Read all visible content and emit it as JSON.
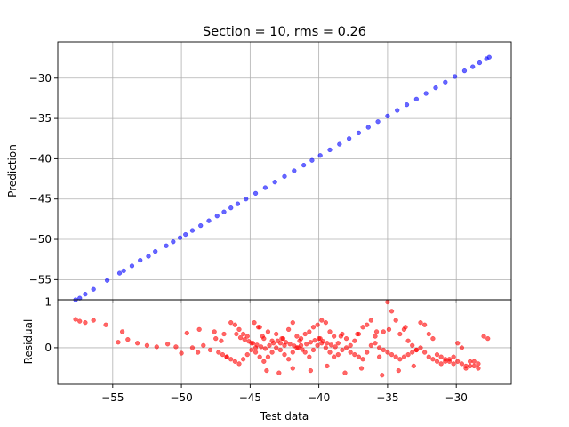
{
  "chart_data": [
    {
      "type": "scatter",
      "title": "Section = 10, rms = 0.26",
      "xlabel": "",
      "ylabel": "Prediction",
      "xlim": [
        -59,
        -26
      ],
      "ylim": [
        -57.5,
        -25.5
      ],
      "xticks": [
        -55,
        -50,
        -45,
        -40,
        -35,
        -30
      ],
      "yticks": [
        -55,
        -50,
        -45,
        -40,
        -35,
        -30
      ],
      "ytick_labels": [
        "−55",
        "−50",
        "−45",
        "−40",
        "−35",
        "−30"
      ],
      "grid": true,
      "series": [
        {
          "color": "#0000ff",
          "x": [
            -57.7,
            -57.4,
            -57.0,
            -56.4,
            -55.4,
            -54.5,
            -54.2,
            -53.6,
            -53.0,
            -52.4,
            -51.9,
            -51.1,
            -50.6,
            -50.1,
            -49.7,
            -49.2,
            -48.6,
            -48.0,
            -47.4,
            -46.9,
            -46.4,
            -45.9,
            -45.3,
            -44.6,
            -43.9,
            -43.2,
            -42.5,
            -41.8,
            -41.1,
            -40.5,
            -39.9,
            -39.2,
            -38.5,
            -37.8,
            -37.1,
            -36.4,
            -35.7,
            -35.0,
            -34.3,
            -33.6,
            -32.9,
            -32.2,
            -31.5,
            -30.8,
            -30.1,
            -29.4,
            -28.8,
            -28.3,
            -27.8,
            -27.6
          ],
          "y": [
            -57.5,
            -57.3,
            -56.8,
            -56.2,
            -55.1,
            -54.2,
            -53.9,
            -53.3,
            -52.6,
            -52.1,
            -51.5,
            -50.8,
            -50.3,
            -49.8,
            -49.4,
            -48.9,
            -48.3,
            -47.7,
            -47.1,
            -46.6,
            -46.1,
            -45.6,
            -45.0,
            -44.3,
            -43.6,
            -42.9,
            -42.2,
            -41.5,
            -40.8,
            -40.2,
            -39.6,
            -38.9,
            -38.2,
            -37.5,
            -36.8,
            -36.1,
            -35.4,
            -34.7,
            -34.0,
            -33.3,
            -32.6,
            -31.9,
            -31.2,
            -30.5,
            -29.8,
            -29.1,
            -28.6,
            -28.1,
            -27.6,
            -27.4
          ]
        }
      ]
    },
    {
      "type": "scatter",
      "title": "",
      "xlabel": "Test data",
      "ylabel": "Residual",
      "xlim": [
        -59,
        -26
      ],
      "ylim": [
        -0.8,
        1.05
      ],
      "xticks": [
        -55,
        -50,
        -45,
        -40,
        -35,
        -30
      ],
      "xtick_labels": [
        "−55",
        "−50",
        "−45",
        "−40",
        "−35",
        "−30"
      ],
      "yticks": [
        0,
        1
      ],
      "ytick_labels": [
        "0",
        "1"
      ],
      "grid": true,
      "series": [
        {
          "color": "#ff0000",
          "x": [
            -57.7,
            -57.4,
            -57.0,
            -56.4,
            -55.5,
            -54.6,
            -54.3,
            -53.9,
            -53.2,
            -52.5,
            -51.8,
            -51.0,
            -50.4,
            -50.0,
            -49.6,
            -49.2,
            -48.8,
            -48.4,
            -47.9,
            -47.5,
            -47.1,
            -46.7,
            -46.4,
            -46.1,
            -45.8,
            -45.5,
            -45.2,
            -44.9,
            -44.6,
            -44.3,
            -44.0,
            -43.7,
            -43.4,
            -43.1,
            -42.8,
            -42.5,
            -42.2,
            -41.9,
            -41.6,
            -41.3,
            -41.0,
            -40.7,
            -40.4,
            -40.1,
            -39.8,
            -39.5,
            -39.2,
            -38.9,
            -38.6,
            -38.3,
            -38.0,
            -37.7,
            -37.4,
            -37.1,
            -36.8,
            -36.5,
            -36.2,
            -35.9,
            -35.6,
            -35.3,
            -35.0,
            -34.7,
            -34.4,
            -34.1,
            -33.8,
            -33.5,
            -33.2,
            -32.9,
            -32.6,
            -32.3,
            -32.0,
            -31.7,
            -31.4,
            -31.1,
            -30.8,
            -30.5,
            -30.2,
            -29.9,
            -29.6,
            -29.3,
            -29.0,
            -28.7,
            -28.4,
            -28.0,
            -27.7,
            -46.0,
            -45.7,
            -45.4,
            -45.1,
            -44.8,
            -44.5,
            -44.2,
            -43.9,
            -43.6,
            -43.3,
            -43.0,
            -42.7,
            -42.4,
            -42.1,
            -41.8,
            -41.5,
            -41.2,
            -40.9,
            -40.6,
            -40.3,
            -40.0,
            -39.7,
            -39.4,
            -39.1,
            -38.8,
            -47.3,
            -47.0,
            -46.7,
            -46.4,
            -46.1,
            -45.8,
            -45.5,
            -45.2,
            -44.9,
            -44.6,
            -44.3,
            -44.0,
            -43.7,
            -43.4,
            -43.1,
            -42.8,
            -42.5,
            -42.2,
            -41.9,
            -41.6,
            -41.3,
            -41.0,
            -40.7,
            -40.4,
            -40.1,
            -39.8,
            -39.5,
            -39.2,
            -38.9,
            -38.6,
            -38.3,
            -38.0,
            -37.7,
            -37.4,
            -37.1,
            -36.8,
            -36.5,
            -36.2,
            -35.9,
            -35.6,
            -35.3,
            -35.0,
            -34.7,
            -34.4,
            -34.1,
            -33.8,
            -33.5,
            -33.2,
            -32.9,
            -32.6,
            -32.3,
            -32.0,
            -31.7,
            -31.4,
            -31.1,
            -30.8,
            -30.5,
            -30.2,
            -29.9,
            -29.6,
            -29.3,
            -29.0,
            -28.7,
            -28.4,
            -44.7,
            -44.4,
            -43.8,
            -42.9,
            -41.9,
            -40.6,
            -39.4,
            -38.1,
            -36.9,
            -35.4,
            -34.2,
            -33.1,
            -48.7,
            -47.6,
            -46.9,
            -44.1,
            -42.6,
            -41.4,
            -39.9,
            -38.4,
            -37.2,
            -35.8,
            -34.9,
            -33.7
          ],
          "y": [
            0.62,
            0.58,
            0.55,
            0.6,
            0.5,
            0.12,
            0.35,
            0.18,
            0.1,
            0.05,
            0.02,
            0.08,
            0.02,
            -0.12,
            0.32,
            0.0,
            -0.1,
            0.05,
            -0.05,
            0.2,
            0.15,
            -0.2,
            0.55,
            0.5,
            0.4,
            0.3,
            0.25,
            0.1,
            0.0,
            0.45,
            0.2,
            0.35,
            0.15,
            0.3,
            0.1,
            0.05,
            0.4,
            0.55,
            0.25,
            0.2,
            0.3,
            0.35,
            0.45,
            0.5,
            0.6,
            0.55,
            0.35,
            0.25,
            0.1,
            0.3,
            0.2,
            0.05,
            0.15,
            0.3,
            0.45,
            0.5,
            0.6,
            0.25,
            -0.2,
            0.35,
            1.0,
            0.8,
            0.6,
            0.3,
            0.4,
            0.15,
            0.05,
            -0.05,
            0.55,
            0.5,
            0.3,
            0.2,
            -0.15,
            -0.2,
            -0.25,
            -0.3,
            -0.35,
            0.1,
            0.0,
            -0.45,
            -0.3,
            -0.4,
            -0.45,
            0.25,
            0.2,
            0.3,
            0.22,
            0.18,
            0.14,
            0.1,
            0.06,
            0.02,
            -0.02,
            0.05,
            0.1,
            0.15,
            0.2,
            0.12,
            0.08,
            0.04,
            0.0,
            -0.04,
            0.08,
            0.12,
            0.16,
            0.2,
            0.14,
            0.1,
            0.06,
            0.02,
            -0.1,
            -0.15,
            -0.2,
            -0.25,
            -0.3,
            -0.35,
            -0.25,
            -0.15,
            -0.05,
            -0.1,
            -0.2,
            -0.3,
            -0.2,
            -0.1,
            0.0,
            -0.05,
            -0.15,
            -0.25,
            -0.1,
            0.0,
            0.05,
            -0.1,
            -0.2,
            -0.05,
            0.05,
            0.1,
            0.0,
            -0.1,
            -0.2,
            -0.15,
            -0.05,
            0.0,
            -0.1,
            -0.15,
            -0.2,
            -0.25,
            -0.1,
            0.05,
            0.1,
            0.0,
            -0.05,
            -0.1,
            -0.15,
            -0.2,
            -0.25,
            -0.2,
            -0.15,
            -0.1,
            -0.05,
            0.0,
            -0.1,
            -0.2,
            -0.25,
            -0.3,
            -0.35,
            -0.3,
            -0.25,
            -0.2,
            -0.3,
            -0.35,
            -0.4,
            -0.4,
            -0.3,
            -0.35,
            0.55,
            0.45,
            -0.5,
            -0.55,
            -0.45,
            -0.5,
            -0.4,
            -0.55,
            -0.45,
            -0.6,
            -0.5,
            -0.4,
            0.4,
            0.35,
            0.3,
            0.25,
            0.2,
            0.15,
            0.2,
            0.25,
            0.3,
            0.35,
            0.4,
            0.45
          ]
        }
      ]
    }
  ]
}
